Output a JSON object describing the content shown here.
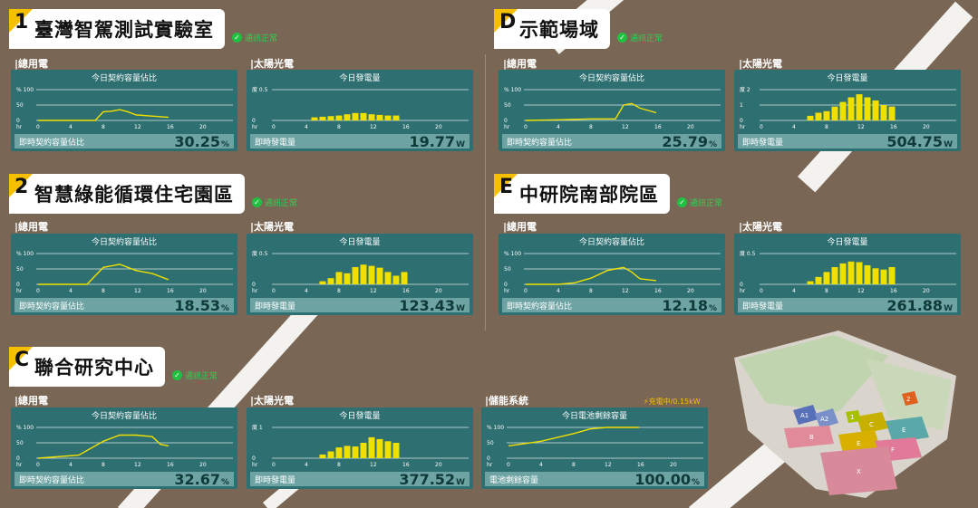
{
  "sites": [
    {
      "id": "s1",
      "badge": "1",
      "name": "臺灣智駕測試實驗室",
      "status": "通訊正常"
    },
    {
      "id": "s2",
      "badge": "2",
      "name": "智慧綠能循環住宅園區",
      "status": "通訊正常"
    },
    {
      "id": "sC",
      "badge": "C",
      "name": "聯合研究中心",
      "status": "通訊正常"
    },
    {
      "id": "sD",
      "badge": "D",
      "name": "示範場域",
      "status": "通訊正常"
    },
    {
      "id": "sE",
      "badge": "E",
      "name": "中研院南部院區",
      "status": "通訊正常"
    }
  ],
  "labels": {
    "grid": "總用電",
    "solar": "太陽光電",
    "storage": "儲能系統",
    "contract_title": "今日契約容量佔比",
    "solar_title": "今日發電量",
    "battery_title": "今日電池剩餘容量",
    "contract_footer": "即時契約容量佔比",
    "solar_footer": "即時發電量",
    "battery_footer": "電池剩餘容量",
    "charge_status": "⚡充電中/0.15kW",
    "x_unit": "hr",
    "pct_axis": "% 100",
    "kwh_unit": "度"
  },
  "readings": {
    "s1_grid": "30.25",
    "s1_solar": "19.77",
    "s2_grid": "18.53",
    "s2_solar": "123.43",
    "sC_grid": "32.67",
    "sC_solar": "377.52",
    "sC_battery": "100.00",
    "sD_grid": "25.79",
    "sD_solar": "504.75",
    "sE_grid": "12.18",
    "sE_solar": "261.88"
  },
  "units": {
    "pct": "%",
    "watt": "W"
  },
  "x_ticks": [
    "0",
    "4",
    "8",
    "12",
    "16",
    "20"
  ],
  "colors": {
    "background": "#7a6655",
    "panel": "#2e6f71",
    "footer": "#6ea3a3",
    "series": "#f0e000",
    "badge": "#f6c000",
    "ok": "#20c040"
  },
  "map_labels": [
    "A1",
    "A2",
    "B",
    "C",
    "D",
    "E",
    "F",
    "X",
    "1",
    "2"
  ],
  "chart_data": [
    {
      "id": "s1_grid",
      "type": "line",
      "title": "今日契約容量佔比",
      "xlabel": "hr",
      "x": [
        0,
        4,
        7,
        8,
        9,
        10,
        11,
        12,
        16
      ],
      "y": [
        0,
        0,
        0,
        28,
        30,
        35,
        28,
        18,
        10
      ],
      "ylim": [
        0,
        100
      ],
      "yticks": [
        "100",
        "50",
        "0"
      ]
    },
    {
      "id": "s1_solar",
      "type": "bar",
      "title": "今日發電量",
      "xlabel": "hr",
      "ylabel": "度",
      "x": [
        5,
        6,
        7,
        8,
        9,
        10,
        11,
        12,
        13,
        14,
        15
      ],
      "values": [
        0.05,
        0.06,
        0.07,
        0.08,
        0.1,
        0.12,
        0.12,
        0.1,
        0.09,
        0.08,
        0.08
      ],
      "ylim": [
        0,
        0.5
      ],
      "yticks": [
        "0.5",
        "0"
      ]
    },
    {
      "id": "s2_grid",
      "type": "line",
      "title": "今日契約容量佔比",
      "xlabel": "hr",
      "x": [
        0,
        6,
        8,
        10,
        12,
        14,
        16
      ],
      "y": [
        0,
        0,
        55,
        65,
        45,
        35,
        15
      ],
      "ylim": [
        0,
        100
      ],
      "yticks": [
        "100",
        "50",
        "0"
      ]
    },
    {
      "id": "s2_solar",
      "type": "bar",
      "title": "今日發電量",
      "xlabel": "hr",
      "ylabel": "度",
      "x": [
        6,
        7,
        8,
        9,
        10,
        11,
        12,
        13,
        14,
        15,
        16
      ],
      "values": [
        0.05,
        0.1,
        0.2,
        0.18,
        0.28,
        0.32,
        0.3,
        0.27,
        0.2,
        0.14,
        0.2
      ],
      "ylim": [
        0,
        0.5
      ],
      "yticks": [
        "0.5",
        "0"
      ]
    },
    {
      "id": "sC_grid",
      "type": "line",
      "title": "今日契約容量佔比",
      "xlabel": "hr",
      "x": [
        0,
        5,
        7,
        8,
        10,
        12,
        14,
        15,
        16
      ],
      "y": [
        0,
        10,
        40,
        55,
        75,
        75,
        70,
        45,
        40
      ],
      "ylim": [
        0,
        100
      ],
      "yticks": [
        "100",
        "50",
        "0"
      ]
    },
    {
      "id": "sC_solar",
      "type": "bar",
      "title": "今日發電量",
      "xlabel": "hr",
      "ylabel": "度",
      "x": [
        6,
        7,
        8,
        9,
        10,
        11,
        12,
        13,
        14,
        15
      ],
      "values": [
        0.12,
        0.22,
        0.35,
        0.4,
        0.38,
        0.5,
        0.68,
        0.62,
        0.55,
        0.5
      ],
      "ylim": [
        0,
        1
      ],
      "yticks": [
        "1",
        "0"
      ]
    },
    {
      "id": "sC_battery",
      "type": "line",
      "title": "今日電池剩餘容量",
      "xlabel": "hr",
      "x": [
        0,
        4,
        8,
        10,
        12,
        16
      ],
      "y": [
        40,
        55,
        80,
        95,
        100,
        100
      ],
      "ylim": [
        0,
        100
      ],
      "yticks": [
        "100",
        "50",
        "0"
      ]
    },
    {
      "id": "sD_grid",
      "type": "line",
      "title": "今日契約容量佔比",
      "xlabel": "hr",
      "x": [
        0,
        4,
        8,
        11,
        12,
        13,
        14,
        16
      ],
      "y": [
        0,
        2,
        5,
        5,
        50,
        55,
        40,
        25
      ],
      "ylim": [
        0,
        100
      ],
      "yticks": [
        "100",
        "50",
        "0"
      ]
    },
    {
      "id": "sD_solar",
      "type": "bar",
      "title": "今日發電量",
      "xlabel": "hr",
      "ylabel": "度",
      "x": [
        6,
        7,
        8,
        9,
        10,
        11,
        12,
        13,
        14,
        15,
        16
      ],
      "values": [
        0.3,
        0.5,
        0.6,
        0.9,
        1.2,
        1.5,
        1.7,
        1.5,
        1.3,
        1.0,
        0.9
      ],
      "ylim": [
        0,
        2
      ],
      "yticks": [
        "2",
        "1",
        "0"
      ]
    },
    {
      "id": "sE_grid",
      "type": "line",
      "title": "今日契約容量佔比",
      "xlabel": "hr",
      "x": [
        0,
        4,
        6,
        8,
        10,
        11,
        12,
        13,
        14,
        16
      ],
      "y": [
        0,
        0,
        5,
        20,
        45,
        50,
        55,
        40,
        18,
        12
      ],
      "ylim": [
        0,
        100
      ],
      "yticks": [
        "100",
        "50",
        "0"
      ]
    },
    {
      "id": "sE_solar",
      "type": "bar",
      "title": "今日發電量",
      "xlabel": "hr",
      "ylabel": "度",
      "x": [
        6,
        7,
        8,
        9,
        10,
        11,
        12,
        13,
        14,
        15,
        16
      ],
      "values": [
        0.05,
        0.12,
        0.2,
        0.28,
        0.34,
        0.37,
        0.36,
        0.31,
        0.26,
        0.24,
        0.28
      ],
      "ylim": [
        0,
        0.5
      ],
      "yticks": [
        "0.5",
        "0"
      ]
    }
  ]
}
